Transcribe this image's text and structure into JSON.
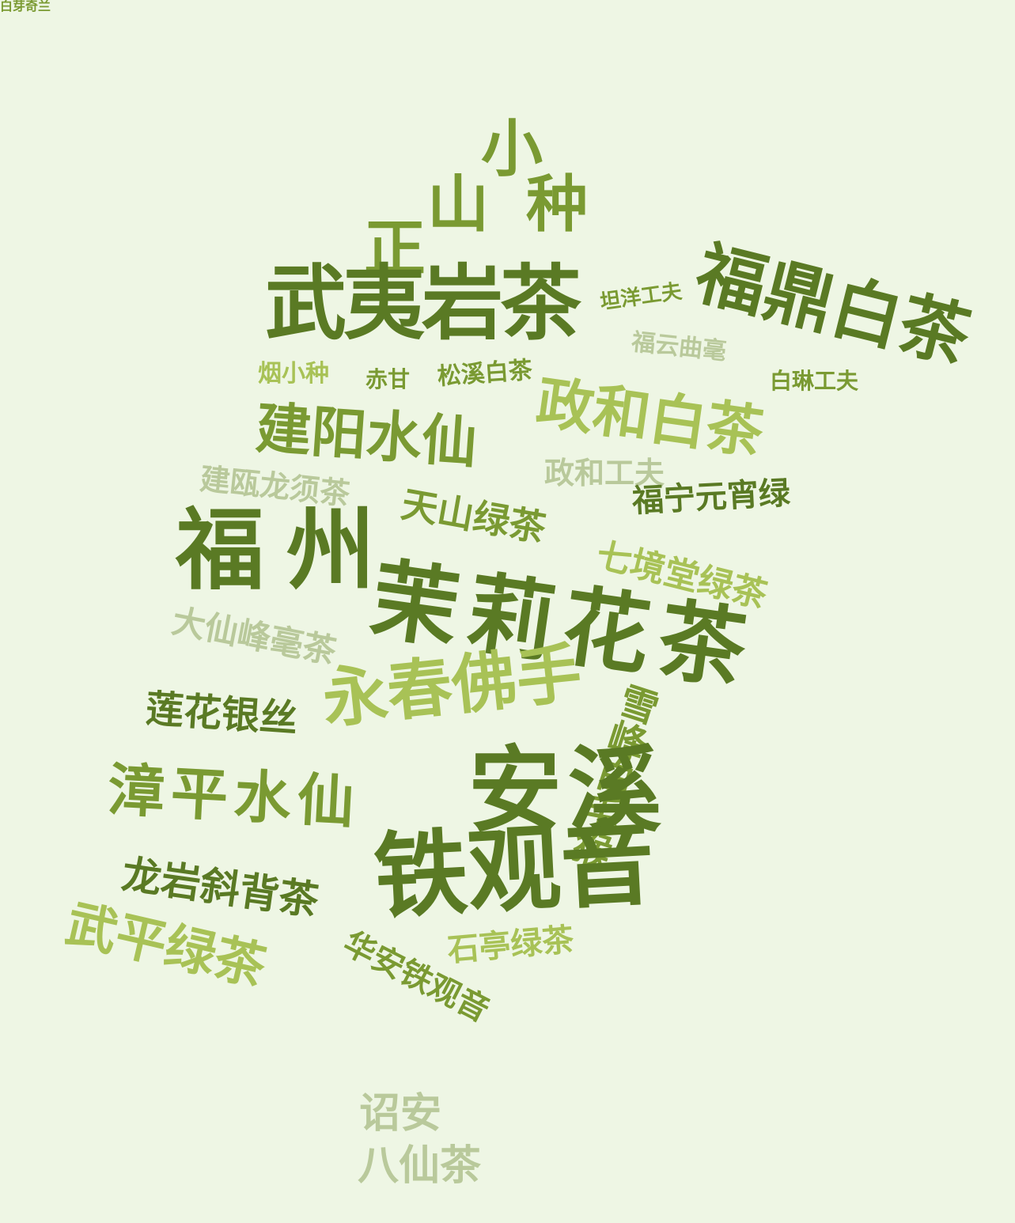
{
  "colors": {
    "background": "#eef6e4",
    "dark_green": "#5a7a24",
    "mid_green": "#7a9a32",
    "light_green": "#a8c256",
    "pale_green": "#b9c99b"
  },
  "words": [
    {
      "id": "zhengshan-xiaozhong",
      "chars": [
        "小",
        "山",
        "种",
        "正"
      ]
    },
    {
      "id": "wuyi-yancha",
      "text": "武夷岩茶"
    },
    {
      "id": "fuding-baicha",
      "text": "福鼎白茶"
    },
    {
      "id": "tanyang-gongfu",
      "text": "坦洋工夫"
    },
    {
      "id": "fuyun-quhao",
      "text": "福云曲毫"
    },
    {
      "id": "yan-xiaozhong",
      "text": "烟小种"
    },
    {
      "id": "chigan",
      "text": "赤甘"
    },
    {
      "id": "songxi-baicha",
      "text": "松溪白茶"
    },
    {
      "id": "bailin-gongfu",
      "text": "白琳工夫"
    },
    {
      "id": "zhenghe-baicha",
      "text": "政和白茶"
    },
    {
      "id": "jianyang-shuixian",
      "text": "建阳水仙"
    },
    {
      "id": "zhenghe-gongfu",
      "text": "政和工夫"
    },
    {
      "id": "jianou-longxucha",
      "text": "建瓯龙须茶"
    },
    {
      "id": "tianshan-lvcha",
      "text": "天山绿茶"
    },
    {
      "id": "funing-yuanxiaolv",
      "text": "福宁元宵绿"
    },
    {
      "id": "fuzhou",
      "text": "福州"
    },
    {
      "id": "qijingtang-lvcha",
      "text": "七境堂绿茶"
    },
    {
      "id": "molihua-cha",
      "text": "茉莉花茶"
    },
    {
      "id": "daxianfeng-haocha",
      "text": "大仙峰毫茶"
    },
    {
      "id": "lianhua-yinsi",
      "text": "莲花银丝"
    },
    {
      "id": "yongchun-foshou",
      "text": "永春佛手"
    },
    {
      "id": "xuefeng-baimaohou",
      "text": "雪峰白毛猴"
    },
    {
      "id": "anxi",
      "text": "安溪"
    },
    {
      "id": "zhangping-shuixian",
      "text": "漳平水仙"
    },
    {
      "id": "tieguanyin",
      "text": "铁观音"
    },
    {
      "id": "longyan-xiebeicha",
      "text": "龙岩斜背茶"
    },
    {
      "id": "wuping-lvcha",
      "text": "武平绿茶"
    },
    {
      "id": "huaan-tieguanyin",
      "text": "华安铁观音"
    },
    {
      "id": "shiting-lvcha",
      "text": "石亭绿茶"
    },
    {
      "id": "baiya-qilan",
      "text": "白芽奇兰"
    },
    {
      "id": "zhaoan",
      "text": "诏安"
    },
    {
      "id": "baxiancha",
      "text": "八仙茶"
    }
  ]
}
